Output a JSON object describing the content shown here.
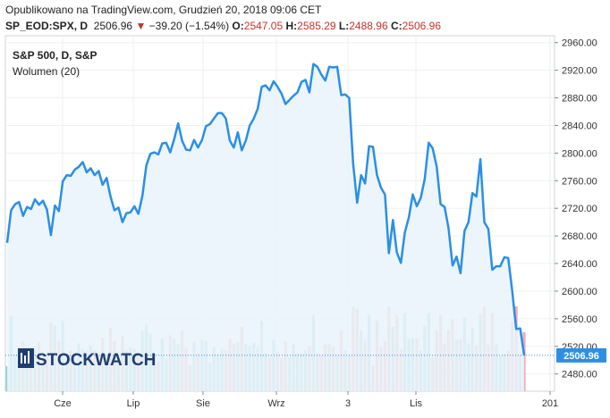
{
  "header": {
    "published": "Opublikowano na TradingView.com, Grudzień 20, 2018 09:06 CET",
    "symbol": "SP_EOD:SPX, D",
    "last": "2506.96",
    "change": "−39.20 (−1.54%)",
    "o_label": "O:",
    "o_value": "2547.05",
    "h_label": "H:",
    "h_value": "2585.29",
    "l_label": "L:",
    "l_value": "2488.96",
    "c_label": "C:",
    "c_value": "2506.96"
  },
  "legend": {
    "title": "S&P 500, D, S&P",
    "volume": "Wolumen (20)"
  },
  "watermark": "STOCKWATCH",
  "colors": {
    "line": "#2b8fe5",
    "fill": "#e9f3fc",
    "vol_up": "#8fcdc8",
    "vol_down": "#f0a3a8",
    "last_label": "#2b8fe5",
    "neg": "#c9302c"
  },
  "chart_data": {
    "type": "line",
    "title": "S&P 500, D, S&P",
    "ylim": [
      2455,
      2970
    ],
    "y_ticks": [
      2480,
      2520,
      2560,
      2600,
      2640,
      2680,
      2720,
      2760,
      2800,
      2840,
      2880,
      2920,
      2960
    ],
    "x_ticks": [
      "Cze",
      "Lip",
      "Sie",
      "Wrz",
      "3",
      "Lis",
      "201"
    ],
    "last_value": 2506.96,
    "series": [
      {
        "values": [
          2670,
          2717,
          2726,
          2729,
          2709,
          2722,
          2719,
          2733,
          2725,
          2731,
          2718,
          2681,
          2724,
          2716,
          2759,
          2768,
          2767,
          2776,
          2780,
          2787,
          2772,
          2778,
          2768,
          2774,
          2754,
          2764,
          2737,
          2717,
          2721,
          2700,
          2713,
          2714,
          2723,
          2712,
          2738,
          2782,
          2799,
          2801,
          2798,
          2814,
          2815,
          2801,
          2820,
          2843,
          2818,
          2805,
          2804,
          2819,
          2808,
          2819,
          2839,
          2842,
          2850,
          2858,
          2858,
          2850,
          2818,
          2808,
          2830,
          2804,
          2818,
          2840,
          2850,
          2864,
          2896,
          2898,
          2891,
          2904,
          2896,
          2886,
          2871,
          2877,
          2883,
          2888,
          2903,
          2906,
          2888,
          2929,
          2925,
          2914,
          2905,
          2925,
          2924,
          2925,
          2884,
          2885,
          2880,
          2785,
          2728,
          2768,
          2756,
          2810,
          2809,
          2768,
          2750,
          2740,
          2655,
          2703,
          2656,
          2641,
          2685,
          2707,
          2740,
          2723,
          2735,
          2762,
          2815,
          2807,
          2781,
          2726,
          2722,
          2691,
          2637,
          2650,
          2626,
          2687,
          2700,
          2742,
          2737,
          2791,
          2700,
          2690,
          2631,
          2636,
          2636,
          2649,
          2648,
          2600,
          2545,
          2546,
          2507
        ]
      }
    ],
    "volume_ticks": [
      "2520.00",
      "2480.00"
    ]
  }
}
